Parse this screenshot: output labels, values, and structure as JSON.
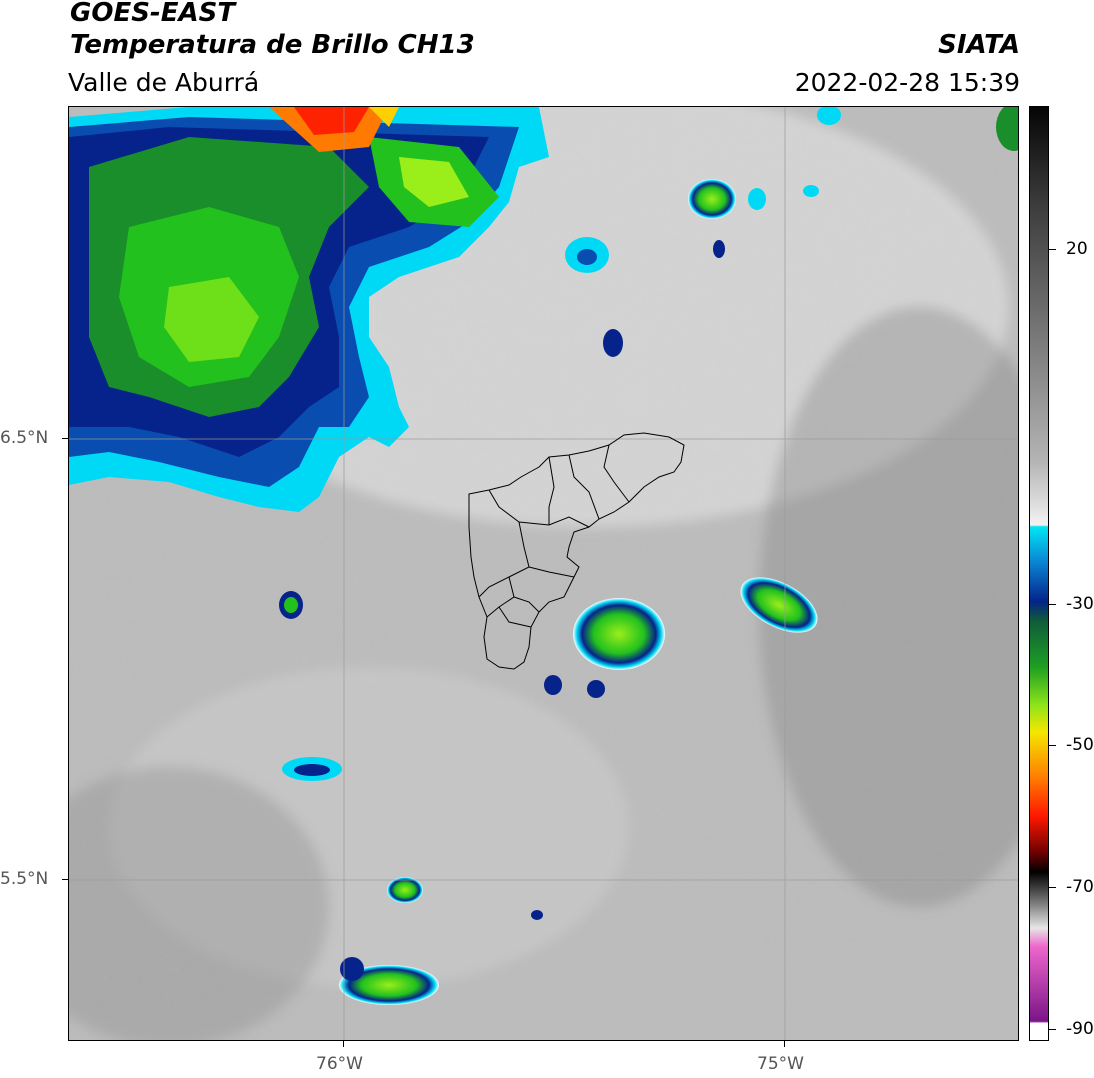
{
  "header": {
    "satellite": "GOES-EAST",
    "product": "Temperatura de Brillo CH13",
    "region": "Valle de Aburrá",
    "agency": "SIATA",
    "datetime": "2022-02-28 15:39"
  },
  "map": {
    "lat_ticks": [
      "6.5°N",
      "5.5°N"
    ],
    "lon_ticks": [
      "76°W",
      "75°W"
    ],
    "lat_range": [
      5.1,
      7.25
    ],
    "lon_range": [
      -76.6,
      -74.45
    ]
  },
  "colorbar": {
    "units_hint": "°C",
    "range": [
      -90,
      35
    ],
    "tick_labels": [
      "20",
      "-30",
      "-50",
      "-70",
      "-90"
    ],
    "tick_values": [
      20,
      -30,
      -50,
      -70,
      -90
    ]
  },
  "colors": {
    "cold_green": "#22c11e",
    "cold_blue": "#05238a",
    "cold_cyan": "#00d9f5",
    "hot_red": "#ff2200",
    "background_gray": "#bdbdbd"
  }
}
